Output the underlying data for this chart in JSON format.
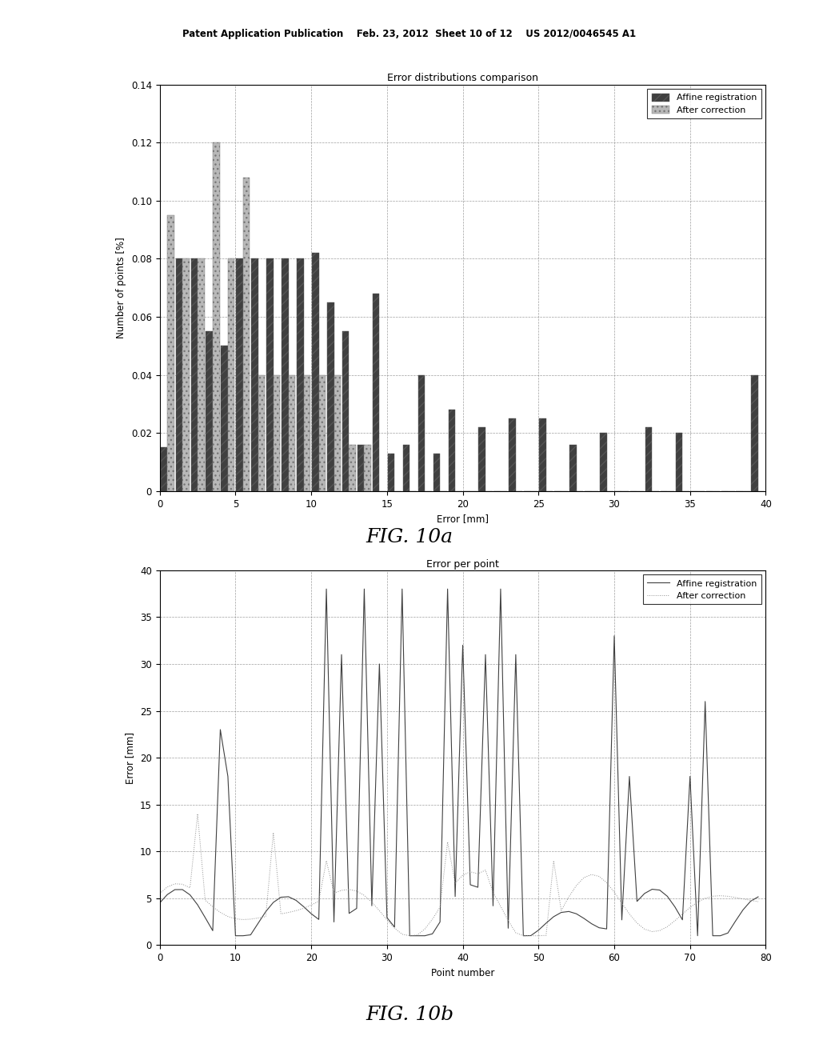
{
  "header": "Patent Application Publication    Feb. 23, 2012  Sheet 10 of 12    US 2012/0046545 A1",
  "fig10a": {
    "title": "Error distributions comparison",
    "xlabel": "Error [mm]",
    "ylabel": "Number of points [%]",
    "xlim": [
      0,
      40
    ],
    "ylim": [
      0,
      0.14
    ],
    "yticks": [
      0,
      0.02,
      0.04,
      0.06,
      0.08,
      0.1,
      0.12,
      0.14
    ],
    "xticks": [
      0,
      5,
      10,
      15,
      20,
      25,
      30,
      35,
      40
    ],
    "affine_values": [
      0.015,
      0.08,
      0.08,
      0.055,
      0.05,
      0.08,
      0.08,
      0.08,
      0.08,
      0.08,
      0.082,
      0.065,
      0.055,
      0.016,
      0.068,
      0.013,
      0.016,
      0.04,
      0.013,
      0.028,
      0.0,
      0.022,
      0.0,
      0.025,
      0.0,
      0.025,
      0.0,
      0.016,
      0.0,
      0.02,
      0.0,
      0.0,
      0.022,
      0.0,
      0.02,
      0.0,
      0.0,
      0.0,
      0.0,
      0.04
    ],
    "corrected_values": [
      0.095,
      0.08,
      0.08,
      0.12,
      0.08,
      0.108,
      0.04,
      0.04,
      0.04,
      0.04,
      0.04,
      0.04,
      0.016,
      0.016,
      0.0,
      0.0,
      0.0,
      0.0,
      0.0,
      0.0,
      0.0,
      0.0,
      0.0,
      0.0,
      0.0,
      0.0,
      0.0,
      0.0,
      0.0,
      0.0,
      0.0,
      0.0,
      0.0,
      0.0,
      0.0,
      0.0,
      0.0,
      0.0,
      0.0,
      0.0
    ],
    "affine_color": "#404040",
    "corrected_color": "#b8b8b8",
    "legend_labels": [
      "Affine registration",
      "After correction"
    ]
  },
  "fig10b": {
    "title": "Error per point",
    "xlabel": "Point number",
    "ylabel": "Error [mm]",
    "xlim": [
      0,
      80
    ],
    "ylim": [
      0,
      40
    ],
    "yticks": [
      0,
      5,
      10,
      15,
      20,
      25,
      30,
      35,
      40
    ],
    "xticks": [
      0,
      10,
      20,
      30,
      40,
      50,
      60,
      70,
      80
    ],
    "legend_labels": [
      "Affine registration",
      "After correction"
    ],
    "affine_color": "#404040",
    "corrected_color": "#909090"
  },
  "fig10a_label": "FIG. 10a",
  "fig10b_label": "FIG. 10b",
  "background_color": "#ffffff"
}
